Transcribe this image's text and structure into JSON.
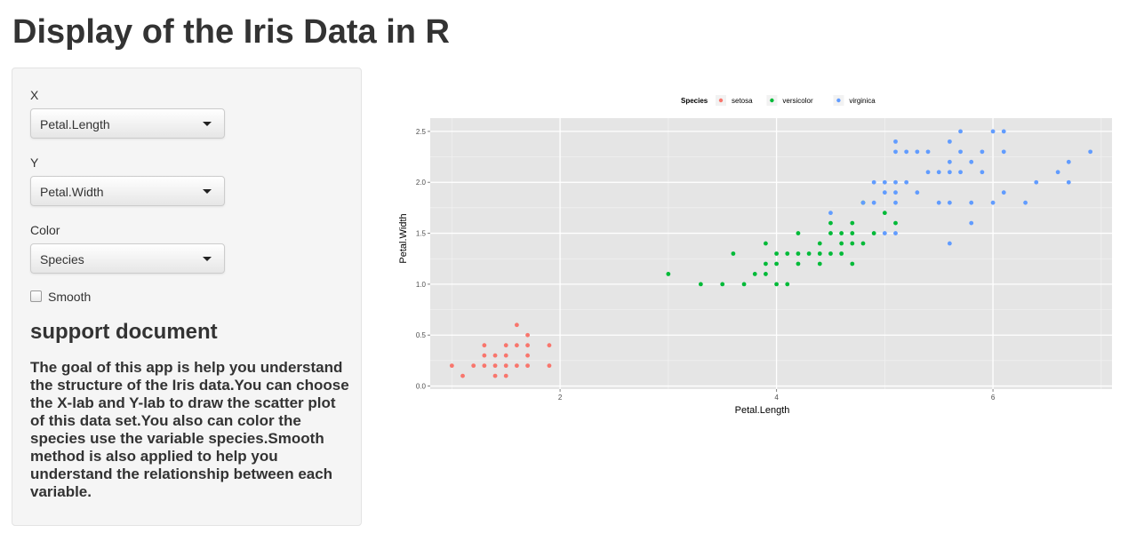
{
  "page": {
    "title": "Display of the Iris Data in R"
  },
  "sidebar": {
    "x_label": "X",
    "x_value": "Petal.Length",
    "y_label": "Y",
    "y_value": "Petal.Width",
    "color_label": "Color",
    "color_value": "Species",
    "smooth_label": "Smooth",
    "smooth_checked": false,
    "support_heading": "support document",
    "support_text": "The goal of this app is help you understand the structure of the Iris data.You can choose the X-lab and Y-lab to draw the scatter plot of this data set.You also can color the species use the variable species.Smooth method is also applied to help you understand the relationship between each variable."
  },
  "chart_data": {
    "type": "scatter",
    "xlabel": "Petal.Length",
    "ylabel": "Petal.Width",
    "xlim": [
      0.8,
      7.1
    ],
    "ylim": [
      -0.03,
      2.63
    ],
    "x_ticks": [
      2,
      4,
      6
    ],
    "y_ticks": [
      0.0,
      0.5,
      1.0,
      1.5,
      2.0,
      2.5
    ],
    "x_tick_labels": [
      "2",
      "4",
      "6"
    ],
    "y_tick_labels": [
      "0.0",
      "0.5",
      "1.0",
      "1.5",
      "2.0",
      "2.5"
    ],
    "grid": true,
    "legend": {
      "title": "Species",
      "position": "top"
    },
    "series": [
      {
        "name": "setosa",
        "color": "#F8766D",
        "points": [
          [
            1.0,
            0.2
          ],
          [
            1.1,
            0.1
          ],
          [
            1.2,
            0.2
          ],
          [
            1.3,
            0.2
          ],
          [
            1.3,
            0.3
          ],
          [
            1.3,
            0.4
          ],
          [
            1.4,
            0.1
          ],
          [
            1.4,
            0.2
          ],
          [
            1.4,
            0.3
          ],
          [
            1.5,
            0.1
          ],
          [
            1.5,
            0.2
          ],
          [
            1.5,
            0.3
          ],
          [
            1.5,
            0.4
          ],
          [
            1.6,
            0.2
          ],
          [
            1.6,
            0.4
          ],
          [
            1.6,
            0.6
          ],
          [
            1.7,
            0.2
          ],
          [
            1.7,
            0.3
          ],
          [
            1.7,
            0.4
          ],
          [
            1.7,
            0.5
          ],
          [
            1.9,
            0.2
          ],
          [
            1.9,
            0.4
          ]
        ]
      },
      {
        "name": "versicolor",
        "color": "#00BA38",
        "points": [
          [
            3.0,
            1.1
          ],
          [
            3.3,
            1.0
          ],
          [
            3.5,
            1.0
          ],
          [
            3.6,
            1.3
          ],
          [
            3.7,
            1.0
          ],
          [
            3.8,
            1.1
          ],
          [
            3.9,
            1.1
          ],
          [
            3.9,
            1.2
          ],
          [
            3.9,
            1.4
          ],
          [
            4.0,
            1.0
          ],
          [
            4.0,
            1.2
          ],
          [
            4.0,
            1.3
          ],
          [
            4.1,
            1.0
          ],
          [
            4.1,
            1.3
          ],
          [
            4.2,
            1.2
          ],
          [
            4.2,
            1.3
          ],
          [
            4.2,
            1.5
          ],
          [
            4.3,
            1.3
          ],
          [
            4.4,
            1.2
          ],
          [
            4.4,
            1.3
          ],
          [
            4.4,
            1.4
          ],
          [
            4.5,
            1.3
          ],
          [
            4.5,
            1.5
          ],
          [
            4.5,
            1.6
          ],
          [
            4.6,
            1.3
          ],
          [
            4.6,
            1.4
          ],
          [
            4.6,
            1.5
          ],
          [
            4.7,
            1.2
          ],
          [
            4.7,
            1.4
          ],
          [
            4.7,
            1.5
          ],
          [
            4.7,
            1.6
          ],
          [
            4.8,
            1.4
          ],
          [
            4.8,
            1.8
          ],
          [
            4.9,
            1.5
          ],
          [
            5.0,
            1.7
          ],
          [
            5.1,
            1.6
          ]
        ]
      },
      {
        "name": "virginica",
        "color": "#619CFF",
        "points": [
          [
            4.5,
            1.7
          ],
          [
            4.8,
            1.8
          ],
          [
            4.9,
            1.8
          ],
          [
            4.9,
            2.0
          ],
          [
            5.0,
            1.5
          ],
          [
            5.0,
            1.9
          ],
          [
            5.0,
            2.0
          ],
          [
            5.1,
            1.5
          ],
          [
            5.1,
            1.8
          ],
          [
            5.1,
            1.9
          ],
          [
            5.1,
            2.0
          ],
          [
            5.1,
            2.3
          ],
          [
            5.1,
            2.4
          ],
          [
            5.2,
            2.0
          ],
          [
            5.2,
            2.3
          ],
          [
            5.3,
            1.9
          ],
          [
            5.3,
            2.3
          ],
          [
            5.4,
            2.1
          ],
          [
            5.4,
            2.3
          ],
          [
            5.5,
            1.8
          ],
          [
            5.5,
            2.1
          ],
          [
            5.6,
            1.4
          ],
          [
            5.6,
            1.8
          ],
          [
            5.6,
            2.1
          ],
          [
            5.6,
            2.2
          ],
          [
            5.6,
            2.4
          ],
          [
            5.7,
            2.1
          ],
          [
            5.7,
            2.3
          ],
          [
            5.7,
            2.5
          ],
          [
            5.8,
            1.6
          ],
          [
            5.8,
            1.8
          ],
          [
            5.8,
            2.2
          ],
          [
            5.9,
            2.1
          ],
          [
            5.9,
            2.3
          ],
          [
            6.0,
            1.8
          ],
          [
            6.0,
            2.5
          ],
          [
            6.1,
            1.9
          ],
          [
            6.1,
            2.3
          ],
          [
            6.1,
            2.5
          ],
          [
            6.3,
            1.8
          ],
          [
            6.4,
            2.0
          ],
          [
            6.6,
            2.1
          ],
          [
            6.7,
            2.0
          ],
          [
            6.7,
            2.2
          ],
          [
            6.9,
            2.3
          ]
        ]
      }
    ]
  }
}
